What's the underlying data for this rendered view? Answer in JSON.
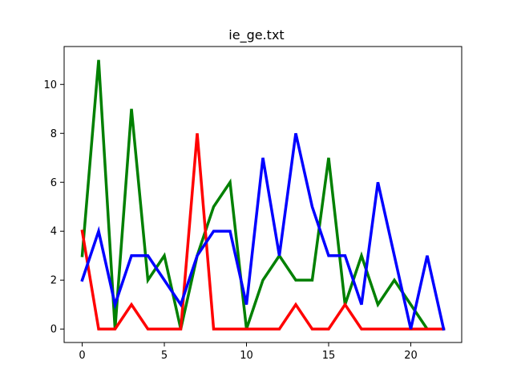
{
  "chart_data": {
    "type": "line",
    "title": "ie_ge.txt",
    "xlabel": "",
    "ylabel": "",
    "x": [
      0,
      1,
      2,
      3,
      4,
      5,
      6,
      7,
      8,
      9,
      10,
      11,
      12,
      13,
      14,
      15,
      16,
      17,
      18,
      19,
      20,
      21,
      22
    ],
    "xlim": [
      -1.1,
      23.1
    ],
    "ylim": [
      -0.55,
      11.55
    ],
    "xticks": [
      0,
      5,
      10,
      15,
      20
    ],
    "yticks": [
      0,
      2,
      4,
      6,
      8,
      10
    ],
    "grid": false,
    "series": [
      {
        "color": "#008000",
        "values": [
          3,
          11,
          0,
          9,
          2,
          3,
          0,
          3,
          5,
          6,
          0,
          2,
          3,
          2,
          2,
          7,
          1,
          3,
          1,
          2,
          1,
          0,
          0
        ]
      },
      {
        "color": "#ff0000",
        "values": [
          4,
          0,
          0,
          1,
          0,
          0,
          0,
          8,
          0,
          0,
          0,
          0,
          0,
          1,
          0,
          0,
          1,
          0,
          0,
          0,
          0,
          0,
          0
        ]
      },
      {
        "color": "#0000ff",
        "values": [
          2,
          4,
          1,
          3,
          3,
          2,
          1,
          3,
          4,
          4,
          1,
          7,
          3,
          8,
          5,
          3,
          3,
          1,
          6,
          3,
          0,
          3,
          0
        ]
      }
    ]
  }
}
